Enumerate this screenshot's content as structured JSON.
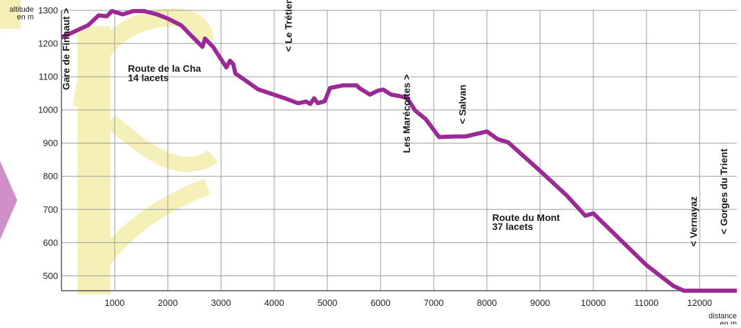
{
  "chart_data": {
    "type": "line",
    "xlabel": [
      "distance",
      "en m"
    ],
    "ylabel": [
      "altitude",
      "en m"
    ],
    "xlim": [
      0,
      12700
    ],
    "ylim": [
      455,
      1300
    ],
    "xticks": [
      1000,
      2000,
      3000,
      4000,
      5000,
      6000,
      7000,
      8000,
      9000,
      10000,
      11000,
      12000
    ],
    "yticks": [
      500,
      600,
      700,
      800,
      900,
      1000,
      1100,
      1200,
      1300
    ],
    "grid": true,
    "colors": {
      "line": "#9b2a96",
      "grid": "#9a9a9a",
      "watermark": "#f5f0b8",
      "arrow": "#cf8fc7"
    },
    "series": [
      {
        "x": [
          0,
          500,
          700,
          850,
          950,
          1150,
          1350,
          1550,
          1800,
          2000,
          2250,
          2650,
          2700,
          2850,
          3100,
          3170,
          3230,
          3270,
          3700,
          4200,
          4450,
          4600,
          4680,
          4750,
          4820,
          4950,
          5050,
          5300,
          5550,
          5600,
          5800,
          5950,
          6050,
          6200,
          6350,
          6500,
          6650,
          6850,
          7100,
          7400,
          7600,
          8000,
          8200,
          8400,
          9000,
          9500,
          9850,
          10000,
          10500,
          11000,
          11500,
          11700,
          12700
        ],
        "y": [
          1218,
          1255,
          1285,
          1282,
          1298,
          1288,
          1298,
          1298,
          1288,
          1275,
          1255,
          1190,
          1215,
          1190,
          1128,
          1148,
          1138,
          1110,
          1062,
          1035,
          1020,
          1025,
          1018,
          1035,
          1020,
          1026,
          1066,
          1074,
          1074,
          1066,
          1046,
          1058,
          1061,
          1046,
          1042,
          1036,
          998,
          972,
          918,
          920,
          920,
          935,
          912,
          902,
          816,
          742,
          681,
          688,
          610,
          532,
          470,
          455,
          455
        ]
      }
    ],
    "annotations": [
      {
        "text": "Gare de Finhaut >",
        "x": 150,
        "y": 1060,
        "rotate": -90
      },
      {
        "text": "Route de la Cha",
        "x": 1250,
        "y": 1115,
        "rotate": 0
      },
      {
        "text": "14 lacets",
        "x": 1250,
        "y": 1087,
        "rotate": 0
      },
      {
        "text": "< Le Trétien",
        "x": 4330,
        "y": 1175,
        "rotate": -90
      },
      {
        "text": "Les Marécottes >",
        "x": 6550,
        "y": 870,
        "rotate": -90
      },
      {
        "text": "< Salvan",
        "x": 7600,
        "y": 957,
        "rotate": -90
      },
      {
        "text": "Route du Mont",
        "x": 8100,
        "y": 665,
        "rotate": 0
      },
      {
        "text": "37 lacets",
        "x": 8100,
        "y": 638,
        "rotate": 0
      },
      {
        "text": "< Vernayaz",
        "x": 11950,
        "y": 588,
        "rotate": -90
      },
      {
        "text": "< Gorges du Trient",
        "x": 12520,
        "y": 625,
        "rotate": -90
      }
    ]
  }
}
